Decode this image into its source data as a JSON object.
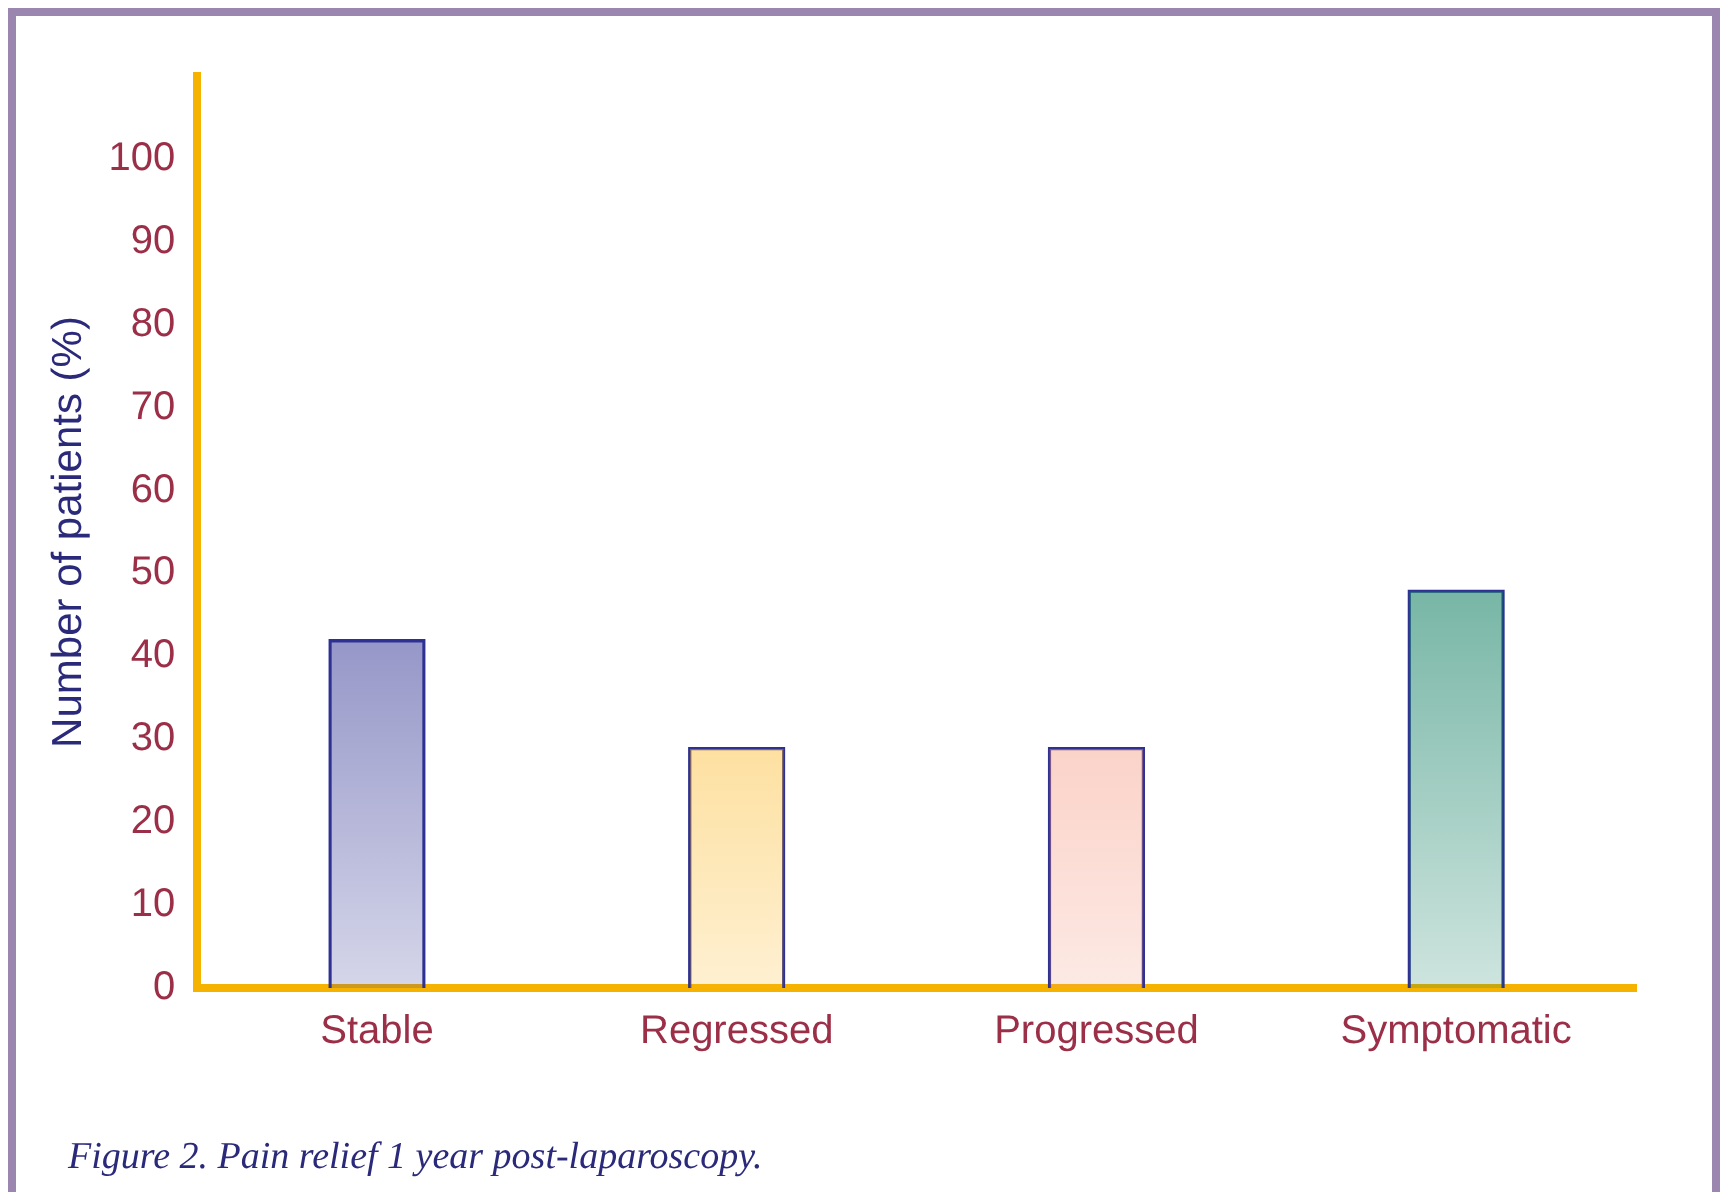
{
  "chart_data": {
    "type": "bar",
    "ylabel": "Number of patients (%)",
    "categories": [
      "Stable",
      "Regressed",
      "Progressed",
      "Symptomatic"
    ],
    "values": [
      42,
      29,
      29,
      48
    ],
    "colors": [
      "#2e3192",
      "#fbb41a",
      "#f4937a",
      "#087a5c"
    ],
    "ylim": [
      0,
      110
    ],
    "yticks": [
      0,
      10,
      20,
      30,
      40,
      50,
      60,
      70,
      80,
      90,
      100
    ],
    "grid": false,
    "legend": false,
    "annotations": [
      "Figure 2. Pain relief 1 year post-laparoscopy."
    ]
  }
}
